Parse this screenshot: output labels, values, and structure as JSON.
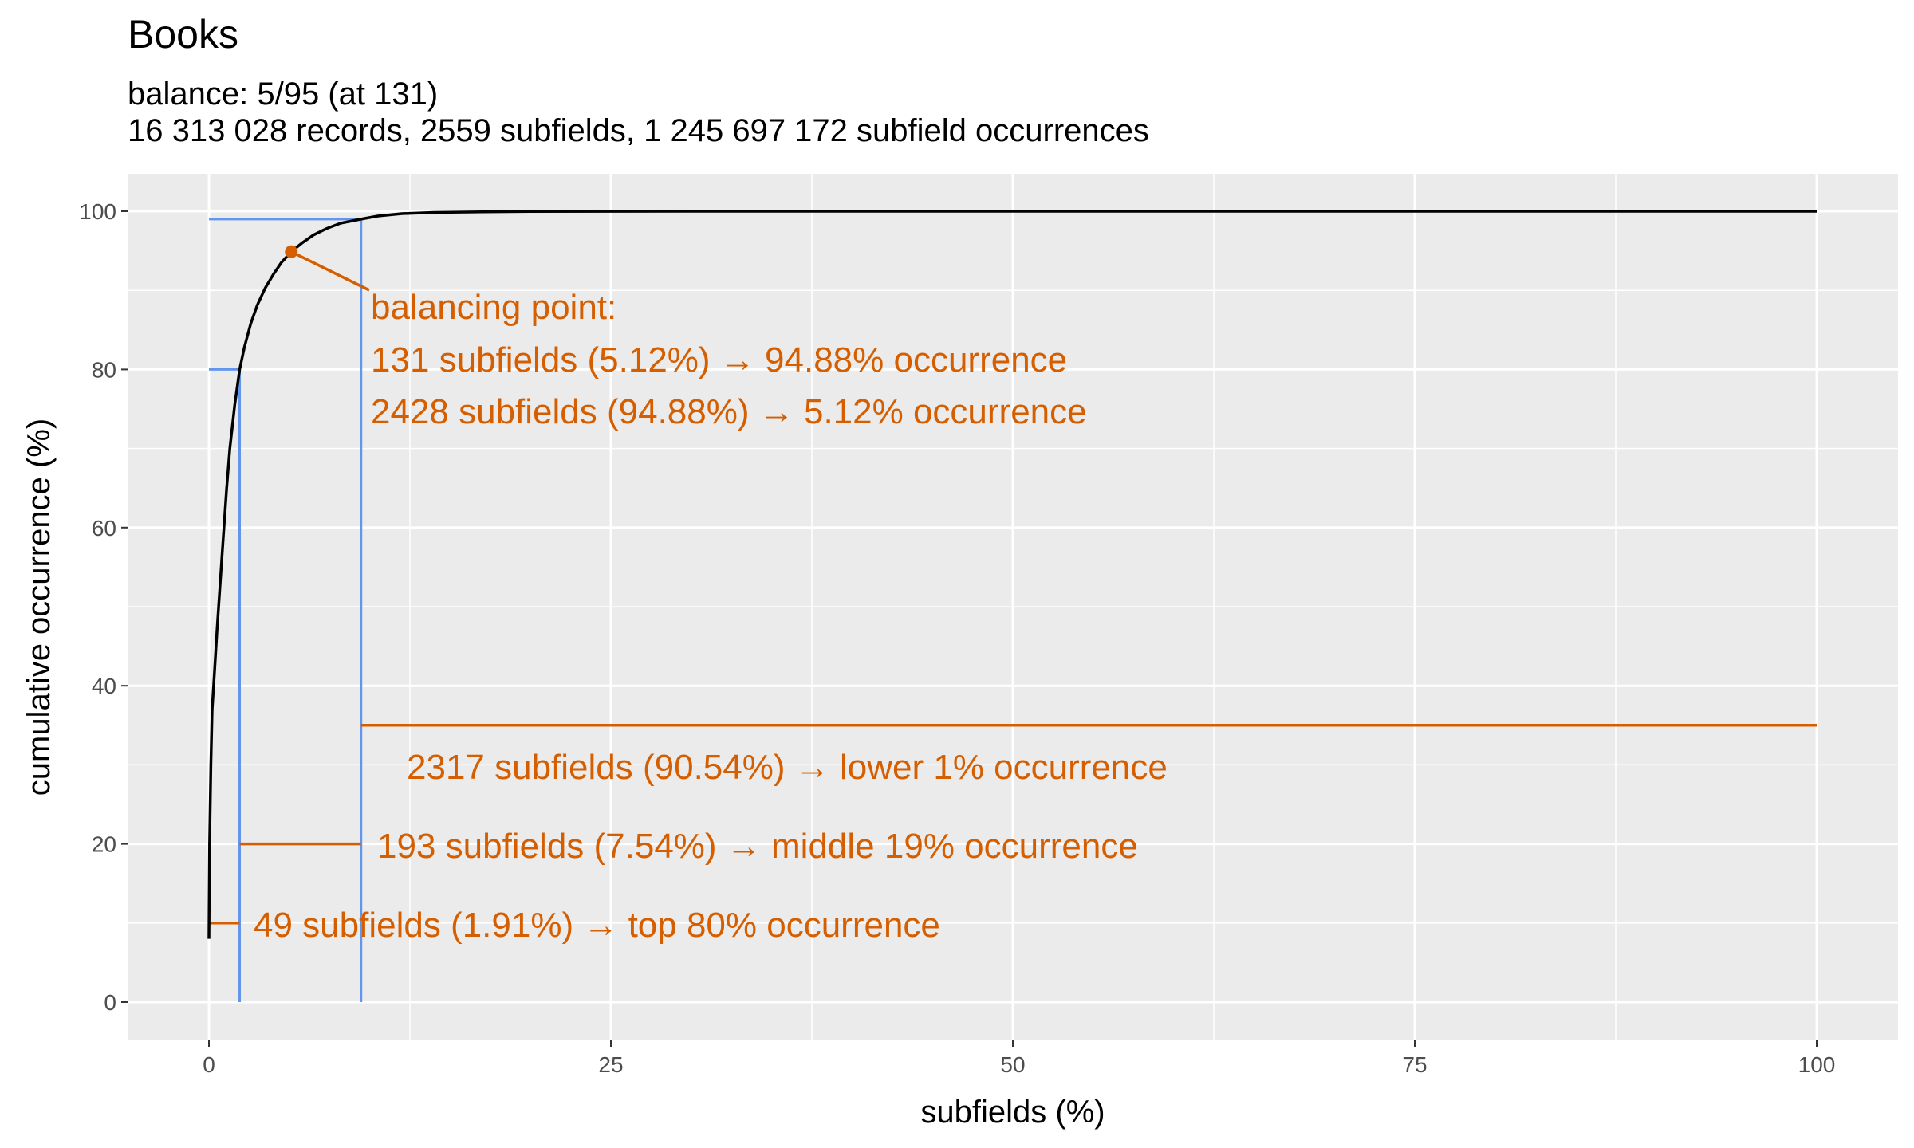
{
  "chart_data": {
    "type": "line",
    "title": "Books",
    "subtitle_lines": [
      "balance: 5/95 (at 131)",
      "16 313 028 records, 2559 subfields, 1 245 697 172 subfield occurrences"
    ],
    "xlabel": "subfields (%)",
    "ylabel": "cumulative occurrence (%)",
    "xlim": [
      0,
      100
    ],
    "ylim": [
      0,
      100
    ],
    "x_ticks": [
      0,
      25,
      50,
      75,
      100
    ],
    "y_ticks": [
      0,
      20,
      40,
      60,
      80,
      100
    ],
    "grid": true,
    "colors": {
      "panel": "#ebebeb",
      "grid": "#ffffff",
      "curve": "#000000",
      "accent": "#d55e00",
      "guides": "#6495ed",
      "tick_text": "#4d4d4d"
    },
    "curve": {
      "x": [
        0,
        0.04,
        0.12,
        0.2,
        0.35,
        0.5,
        0.7,
        0.9,
        1.1,
        1.3,
        1.6,
        1.91,
        2.2,
        2.6,
        3.0,
        3.5,
        4.0,
        4.5,
        5.12,
        5.8,
        6.5,
        7.3,
        8.2,
        9.46,
        10.5,
        12,
        14,
        17,
        20,
        30,
        50,
        75,
        100
      ],
      "y": [
        8,
        20,
        30,
        37,
        42,
        47,
        53,
        59,
        65,
        70,
        75.5,
        80,
        82.8,
        85.8,
        88.1,
        90.3,
        92.0,
        93.5,
        94.88,
        96.0,
        97.0,
        97.8,
        98.5,
        99.0,
        99.4,
        99.7,
        99.85,
        99.93,
        99.97,
        100,
        100,
        100,
        100
      ]
    },
    "balancing_point": {
      "x": 5.12,
      "y": 94.88
    },
    "guide_lines": [
      {
        "x": 1.91,
        "y": 80
      },
      {
        "x": 9.46,
        "y": 99
      }
    ],
    "segments": [
      {
        "x_start": 0,
        "x_end": 1.91,
        "y": 10
      },
      {
        "x_start": 1.91,
        "x_end": 9.46,
        "y": 20
      },
      {
        "x_start": 9.46,
        "x_end": 100,
        "y": 35
      }
    ],
    "annotations": {
      "balance_header": "balancing point:",
      "balance_top": "131 subfields (5.12%) → 94.88% occurrence",
      "balance_bottom": "2428 subfields (94.88%) → 5.12% occurrence",
      "lower": "2317 subfields (90.54%) → lower 1% occurrence",
      "middle": "193 subfields (7.54%) → middle 19% occurrence",
      "top": "49 subfields (1.91%) → top 80% occurrence"
    }
  }
}
